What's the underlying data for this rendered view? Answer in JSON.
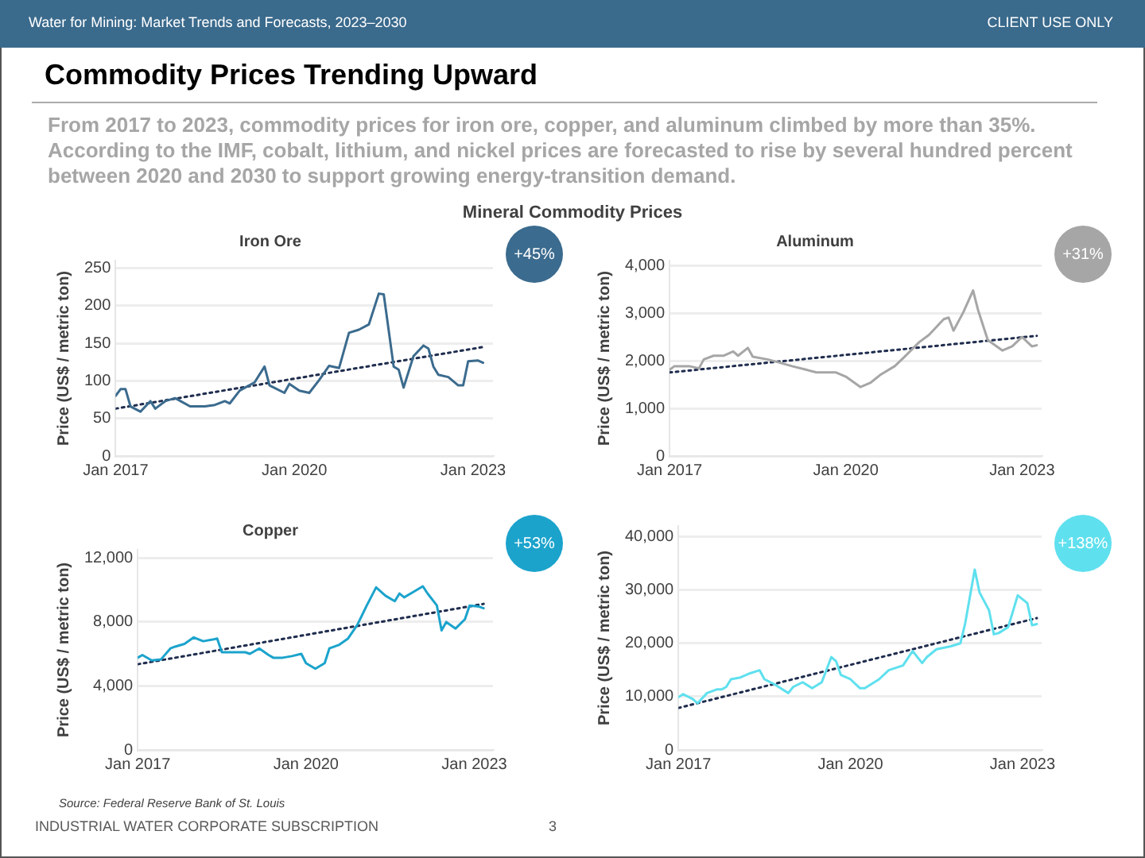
{
  "chart_data": [
    {
      "type": "other",
      "title": "Commodity Prices Trending Upward",
      "subtitle": "From 2017 to 2023, commodity prices for iron ore, copper, and aluminum climbed by more than 35%. According to the IMF, cobalt, lithium, and nickel prices are forecasted to rise by several hundred percent between 2020 and 2030 to support growing energy-transition demand.",
      "annotations": [
        "Water for Mining: Market Trends and Forecasts, 2023–2030",
        "CLIENT USE ONLY",
        "Mineral Commodity Prices",
        "Source: Federal Reserve Bank of St. Louis",
        "INDUSTRIAL WATER CORPORATE SUBSCRIPTION",
        "3"
      ]
    },
    {
      "type": "line",
      "title": "Iron Ore",
      "ylabel": "Price (US$ / metric ton)",
      "annotations": [
        "+45%"
      ],
      "xlim": [
        "2017-01",
        "2023-05"
      ],
      "xticks": [
        {
          "value": "2017-01",
          "label": "Jan 2017"
        },
        {
          "value": "2020-01",
          "label": "Jan 2020"
        },
        {
          "value": "2023-01",
          "label": "Jan 2023"
        }
      ],
      "ylim": [
        0,
        260
      ],
      "yticks": [
        0,
        50,
        100,
        150,
        200,
        250
      ],
      "grid": "y",
      "legend": false,
      "marker": "none",
      "x": [
        "2017-01",
        "2017-02",
        "2017-03",
        "2017-04",
        "2017-06",
        "2017-08",
        "2017-09",
        "2017-11",
        "2018-01",
        "2018-04",
        "2018-07",
        "2018-09",
        "2018-11",
        "2018-12",
        "2019-02",
        "2019-05",
        "2019-07",
        "2019-08",
        "2019-11",
        "2019-12",
        "2020-02",
        "2020-04",
        "2020-06",
        "2020-08",
        "2020-10",
        "2020-12",
        "2021-02",
        "2021-04",
        "2021-06",
        "2021-07",
        "2021-09",
        "2021-10",
        "2021-11",
        "2022-01",
        "2022-03",
        "2022-04",
        "2022-05",
        "2022-06",
        "2022-08",
        "2022-10",
        "2022-11",
        "2022-12",
        "2023-02",
        "2023-03"
      ],
      "series": [
        {
          "color": "#3b6b8e",
          "values": [
            80,
            89,
            89,
            66,
            59,
            73,
            63,
            73,
            77,
            66,
            66,
            68,
            73,
            70,
            87,
            98,
            119,
            94,
            84,
            96,
            87,
            84,
            101,
            120,
            117,
            164,
            168,
            175,
            216,
            215,
            119,
            115,
            91,
            133,
            147,
            143,
            119,
            108,
            105,
            94,
            94,
            126,
            127,
            124
          ]
        },
        {
          "type": "line",
          "color": "#1f2d4e",
          "line_style": "dotted",
          "x": [
            "2017-01",
            "2023-03"
          ],
          "values": [
            63,
            145
          ]
        }
      ]
    },
    {
      "type": "line",
      "title": "Aluminum",
      "ylabel": "Price (US$ / metric ton)",
      "annotations": [
        "+31%"
      ],
      "xlim": [
        "2017-01",
        "2023-05"
      ],
      "xticks": [
        {
          "value": "2017-01",
          "label": "Jan 2017"
        },
        {
          "value": "2020-01",
          "label": "Jan 2020"
        },
        {
          "value": "2023-01",
          "label": "Jan 2023"
        }
      ],
      "ylim": [
        0,
        4100
      ],
      "yticks": [
        0,
        {
          "value": 1000,
          "label": "1,000"
        },
        {
          "value": 2000,
          "label": "2,000"
        },
        {
          "value": 3000,
          "label": "3,000"
        },
        {
          "value": 4000,
          "label": "4,000"
        }
      ],
      "grid": "y",
      "legend": false,
      "marker": "none",
      "x": [
        "2017-01",
        "2017-02",
        "2017-05",
        "2017-07",
        "2017-08",
        "2017-10",
        "2017-12",
        "2018-02",
        "2018-03",
        "2018-05",
        "2018-06",
        "2018-09",
        "2018-11",
        "2019-02",
        "2019-05",
        "2019-07",
        "2019-11",
        "2020-01",
        "2020-04",
        "2020-06",
        "2020-08",
        "2020-11",
        "2021-01",
        "2021-04",
        "2021-06",
        "2021-09",
        "2021-10",
        "2021-11",
        "2022-01",
        "2022-03",
        "2022-04",
        "2022-06",
        "2022-09",
        "2022-11",
        "2023-01",
        "2023-03",
        "2023-04"
      ],
      "series": [
        {
          "color": "#a6a6a6",
          "values": [
            1808,
            1885,
            1885,
            1840,
            2027,
            2104,
            2104,
            2192,
            2104,
            2268,
            2082,
            2027,
            1973,
            1885,
            1808,
            1753,
            1753,
            1666,
            1447,
            1534,
            1699,
            1885,
            2082,
            2389,
            2542,
            2871,
            2904,
            2630,
            3014,
            3474,
            3068,
            2433,
            2214,
            2301,
            2499,
            2301,
            2323
          ]
        },
        {
          "type": "line",
          "color": "#1f2d4e",
          "line_style": "dotted",
          "x": [
            "2017-01",
            "2023-04"
          ],
          "values": [
            1753,
            2521
          ]
        }
      ]
    },
    {
      "type": "line",
      "title": "Copper",
      "ylabel": "Price (US$ / metric ton)",
      "annotations": [
        "+53%"
      ],
      "xlim": [
        "2017-01",
        "2023-05"
      ],
      "xticks": [
        {
          "value": "2017-01",
          "label": "Jan 2017"
        },
        {
          "value": "2020-01",
          "label": "Jan 2020"
        },
        {
          "value": "2023-01",
          "label": "Jan 2023"
        }
      ],
      "ylim": [
        0,
        12500
      ],
      "yticks": [
        0,
        {
          "value": 4000,
          "label": "4,000"
        },
        {
          "value": 8000,
          "label": "8,000"
        },
        {
          "value": 12000,
          "label": "12,000"
        }
      ],
      "grid": "y",
      "legend": false,
      "marker": "none",
      "x": [
        "2017-01",
        "2017-02",
        "2017-04",
        "2017-06",
        "2017-08",
        "2017-09",
        "2017-11",
        "2018-01",
        "2018-03",
        "2018-05",
        "2018-06",
        "2018-07",
        "2018-09",
        "2018-12",
        "2019-01",
        "2019-03",
        "2019-05",
        "2019-06",
        "2019-08",
        "2019-10",
        "2019-12",
        "2020-01",
        "2020-03",
        "2020-05",
        "2020-06",
        "2020-08",
        "2020-10",
        "2020-12",
        "2021-02",
        "2021-04",
        "2021-06",
        "2021-08",
        "2021-09",
        "2021-10",
        "2021-12",
        "2022-02",
        "2022-03",
        "2022-05",
        "2022-06",
        "2022-07",
        "2022-09",
        "2022-11",
        "2022-12",
        "2023-02",
        "2023-03"
      ],
      "series": [
        {
          "color": "#1ba3cc",
          "values": [
            5760,
            5930,
            5590,
            5660,
            6340,
            6450,
            6620,
            7030,
            6790,
            6890,
            6960,
            6100,
            6100,
            6100,
            6000,
            6340,
            5930,
            5760,
            5760,
            5860,
            6000,
            5420,
            5070,
            5420,
            6340,
            6550,
            6960,
            7820,
            9020,
            10150,
            9630,
            9290,
            9770,
            9530,
            9870,
            10220,
            9770,
            9020,
            7470,
            7990,
            7580,
            8160,
            9020,
            8950,
            8850
          ]
        },
        {
          "type": "line",
          "color": "#1f2d4e",
          "line_style": "dotted",
          "x": [
            "2017-01",
            "2023-03"
          ],
          "values": [
            5350,
            9120
          ]
        }
      ]
    },
    {
      "type": "line",
      "ylabel": "Price (US$ / metric ton)",
      "annotations": [
        "+138%"
      ],
      "xlim": [
        "2017-01",
        "2023-05"
      ],
      "xticks": [
        {
          "value": "2017-01",
          "label": "Jan 2017"
        },
        {
          "value": "2020-01",
          "label": "Jan 2020"
        },
        {
          "value": "2023-01",
          "label": "Jan 2023"
        }
      ],
      "ylim": [
        0,
        42000
      ],
      "yticks": [
        0,
        {
          "value": 10000,
          "label": "10,000"
        },
        {
          "value": 20000,
          "label": "20,000"
        },
        {
          "value": 30000,
          "label": "30,000"
        },
        {
          "value": 40000,
          "label": "40,000"
        }
      ],
      "grid": "y",
      "legend": false,
      "marker": "none",
      "x": [
        "2017-01",
        "2017-02",
        "2017-04",
        "2017-05",
        "2017-07",
        "2017-09",
        "2017-10",
        "2017-11",
        "2017-12",
        "2018-02",
        "2018-04",
        "2018-06",
        "2018-07",
        "2018-09",
        "2018-12",
        "2019-01",
        "2019-03",
        "2019-05",
        "2019-07",
        "2019-09",
        "2019-10",
        "2019-11",
        "2020-01",
        "2020-03",
        "2020-04",
        "2020-07",
        "2020-09",
        "2020-12",
        "2021-01",
        "2021-02",
        "2021-04",
        "2021-05",
        "2021-07",
        "2021-10",
        "2021-12",
        "2022-01",
        "2022-03",
        "2022-04",
        "2022-06",
        "2022-07",
        "2022-08",
        "2022-10",
        "2022-12",
        "2023-02",
        "2023-03",
        "2023-04"
      ],
      "series": [
        {
          "color": "#5fe0ee",
          "values": [
            9890,
            10450,
            9550,
            8760,
            10670,
            11350,
            11350,
            11800,
            13260,
            13600,
            14380,
            14940,
            13260,
            12360,
            10670,
            11800,
            12700,
            11570,
            12700,
            17420,
            16630,
            14040,
            13260,
            11570,
            11570,
            13260,
            14940,
            15840,
            17190,
            18540,
            16290,
            17420,
            18880,
            19440,
            20000,
            23710,
            33820,
            29550,
            26180,
            21690,
            21910,
            23030,
            28990,
            27530,
            23370,
            23600
          ]
        },
        {
          "type": "line",
          "color": "#1f2d4e",
          "line_style": "dotted",
          "x": [
            "2017-01",
            "2023-04"
          ],
          "values": [
            7870,
            24720
          ]
        }
      ]
    }
  ]
}
